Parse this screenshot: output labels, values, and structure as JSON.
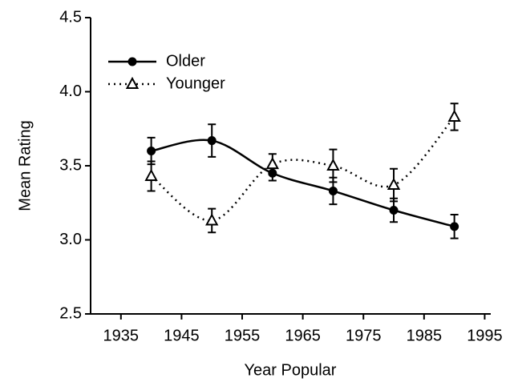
{
  "chart_data": {
    "type": "line",
    "xlabel": "Year Popular",
    "ylabel": "Mean Rating",
    "x": [
      1940,
      1950,
      1960,
      1970,
      1980,
      1990
    ],
    "series": [
      {
        "name": "Older",
        "color": "#000000",
        "line_style": "solid",
        "marker": "circle",
        "values": [
          3.6,
          3.67,
          3.45,
          3.33,
          3.2,
          3.09
        ],
        "errors": [
          0.09,
          0.11,
          0.05,
          0.09,
          0.08,
          0.08
        ]
      },
      {
        "name": "Younger",
        "color": "#000000",
        "line_style": "dotted",
        "marker": "triangle",
        "values": [
          3.43,
          3.13,
          3.51,
          3.5,
          3.37,
          3.83
        ],
        "errors": [
          0.1,
          0.08,
          0.07,
          0.11,
          0.11,
          0.09
        ]
      }
    ],
    "xlim": [
      1930,
      1996
    ],
    "xticks": [
      1935,
      1945,
      1955,
      1965,
      1975,
      1985,
      1995
    ],
    "ylim": [
      2.5,
      4.5
    ],
    "yticks": [
      2.5,
      {
        "value": 3,
        "label": "3.0"
      },
      3.5,
      {
        "value": 4,
        "label": "4.0"
      },
      4.5
    ],
    "legend": "upper left",
    "grid": false
  }
}
